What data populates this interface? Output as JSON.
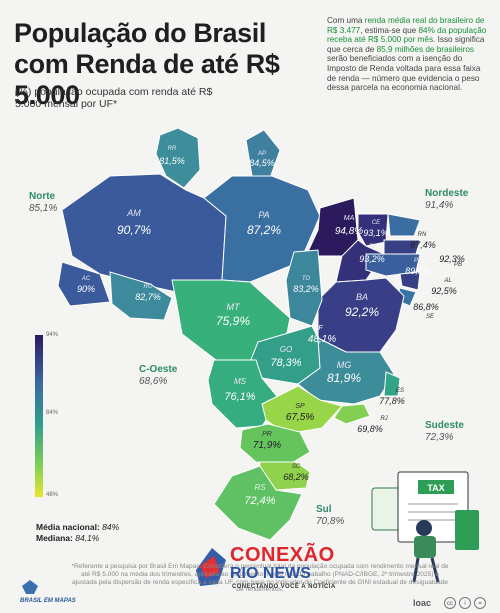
{
  "title": "População do Brasil com Renda de até R$ 5.000",
  "subtitle": "(%) população ocupada com renda até R$ 5.000 mensal por UF*",
  "note": {
    "p1": "Com uma ",
    "h1": "renda média real do brasileiro de R$ 3.477",
    "p2": ", estima-se que ",
    "h2": "84% da população receba até R$ 5.000 por mês",
    "p3": ". Isso significa que cerca de ",
    "h3": "85,9 milhões de brasileiros",
    "p4": " serão beneficiados com a isenção do Imposto de Renda voltada para essa faixa de renda — número que evidencia o peso dessa parcela na economia nacional."
  },
  "regions": {
    "norte": {
      "name": "Norte",
      "value": "85,1%"
    },
    "nordeste": {
      "name": "Nordeste",
      "value": "91,4%"
    },
    "coeste": {
      "name": "C-Oeste",
      "value": "68,6%"
    },
    "sudeste": {
      "name": "Sudeste",
      "value": "72,3%"
    },
    "sul": {
      "name": "Sul",
      "value": "70,8%"
    }
  },
  "states": [
    {
      "uf": "RR",
      "value": "81,5%",
      "color": "#3d8d9a"
    },
    {
      "uf": "AP",
      "value": "84,5%",
      "color": "#3f7fa0"
    },
    {
      "uf": "AM",
      "value": "90,7%",
      "color": "#3b5a9c"
    },
    {
      "uf": "PA",
      "value": "87,2%",
      "color": "#3a6fa2"
    },
    {
      "uf": "MA",
      "value": "94,8%",
      "color": "#2b1a5e"
    },
    {
      "uf": "CE",
      "value": "93,1%",
      "color": "#35307a"
    },
    {
      "uf": "RN",
      "value": "87,4%",
      "color": "#3a6ea2"
    },
    {
      "uf": "PB",
      "value": "92,3%",
      "color": "#373f85"
    },
    {
      "uf": "PI",
      "value": "93,2%",
      "color": "#35307a"
    },
    {
      "uf": "PE",
      "value": "89,1%",
      "color": "#39609c"
    },
    {
      "uf": "AL",
      "value": "92,5%",
      "color": "#373f85"
    },
    {
      "uf": "SE",
      "value": "86,8%",
      "color": "#3a74a2"
    },
    {
      "uf": "BA",
      "value": "92,2%",
      "color": "#383f86"
    },
    {
      "uf": "AC",
      "value": "90%",
      "color": "#3b5a9c"
    },
    {
      "uf": "RO",
      "value": "82,7%",
      "color": "#3c8a9c"
    },
    {
      "uf": "TO",
      "value": "83,2%",
      "color": "#3c879c"
    },
    {
      "uf": "MT",
      "value": "75,9%",
      "color": "#37b07c"
    },
    {
      "uf": "DF",
      "value": "48,1%",
      "color": "#f2e02a"
    },
    {
      "uf": "GO",
      "value": "78,3%",
      "color": "#349f88"
    },
    {
      "uf": "MG",
      "value": "81,9%",
      "color": "#3d8c9a"
    },
    {
      "uf": "ES",
      "value": "77,8%",
      "color": "#33a487"
    },
    {
      "uf": "MS",
      "value": "76,1%",
      "color": "#36ad80"
    },
    {
      "uf": "SP",
      "value": "67,5%",
      "color": "#98d548"
    },
    {
      "uf": "RJ",
      "value": "69,8%",
      "color": "#82cf53"
    },
    {
      "uf": "PR",
      "value": "71,9%",
      "color": "#66c45f"
    },
    {
      "uf": "SC",
      "value": "68,2%",
      "color": "#8fd24c"
    },
    {
      "uf": "RS",
      "value": "72,4%",
      "color": "#5fc163"
    }
  ],
  "legend": {
    "ticks": [
      "94%",
      "84%",
      "48%"
    ],
    "colors": [
      "#2b1a5e",
      "#3b6aa0",
      "#2f9f8a",
      "#7fce55",
      "#e8e430"
    ]
  },
  "national": {
    "mean_label": "Média nacional:",
    "mean_value": "84%",
    "median_label": "Mediana:",
    "median_value": "84,1%"
  },
  "footnote": "*Referente a pesquisa por Brasil Em Mapas. Considera o percentual total da população ocupada com rendimento mensal real de até R$ 5.000 na média dos trimestres, aplicada ao rendimento médio real do trabalho (PNAD-C/IBGE, 2º trimestre 2025) e ajustada pela dispersão de renda específica a cada UF, com base no indicador do Coeficiente de GINI estadual de desigualdade de rendimentos.",
  "brand": "BRASIL EM MAPAS",
  "watermark": {
    "name1": "CONEXÃO",
    "name2": "RIO NEWS",
    "tagline": "CONECTANDO VOCÊ À NOTÍCIA"
  },
  "credit": "loac",
  "tax_label": "TAX"
}
